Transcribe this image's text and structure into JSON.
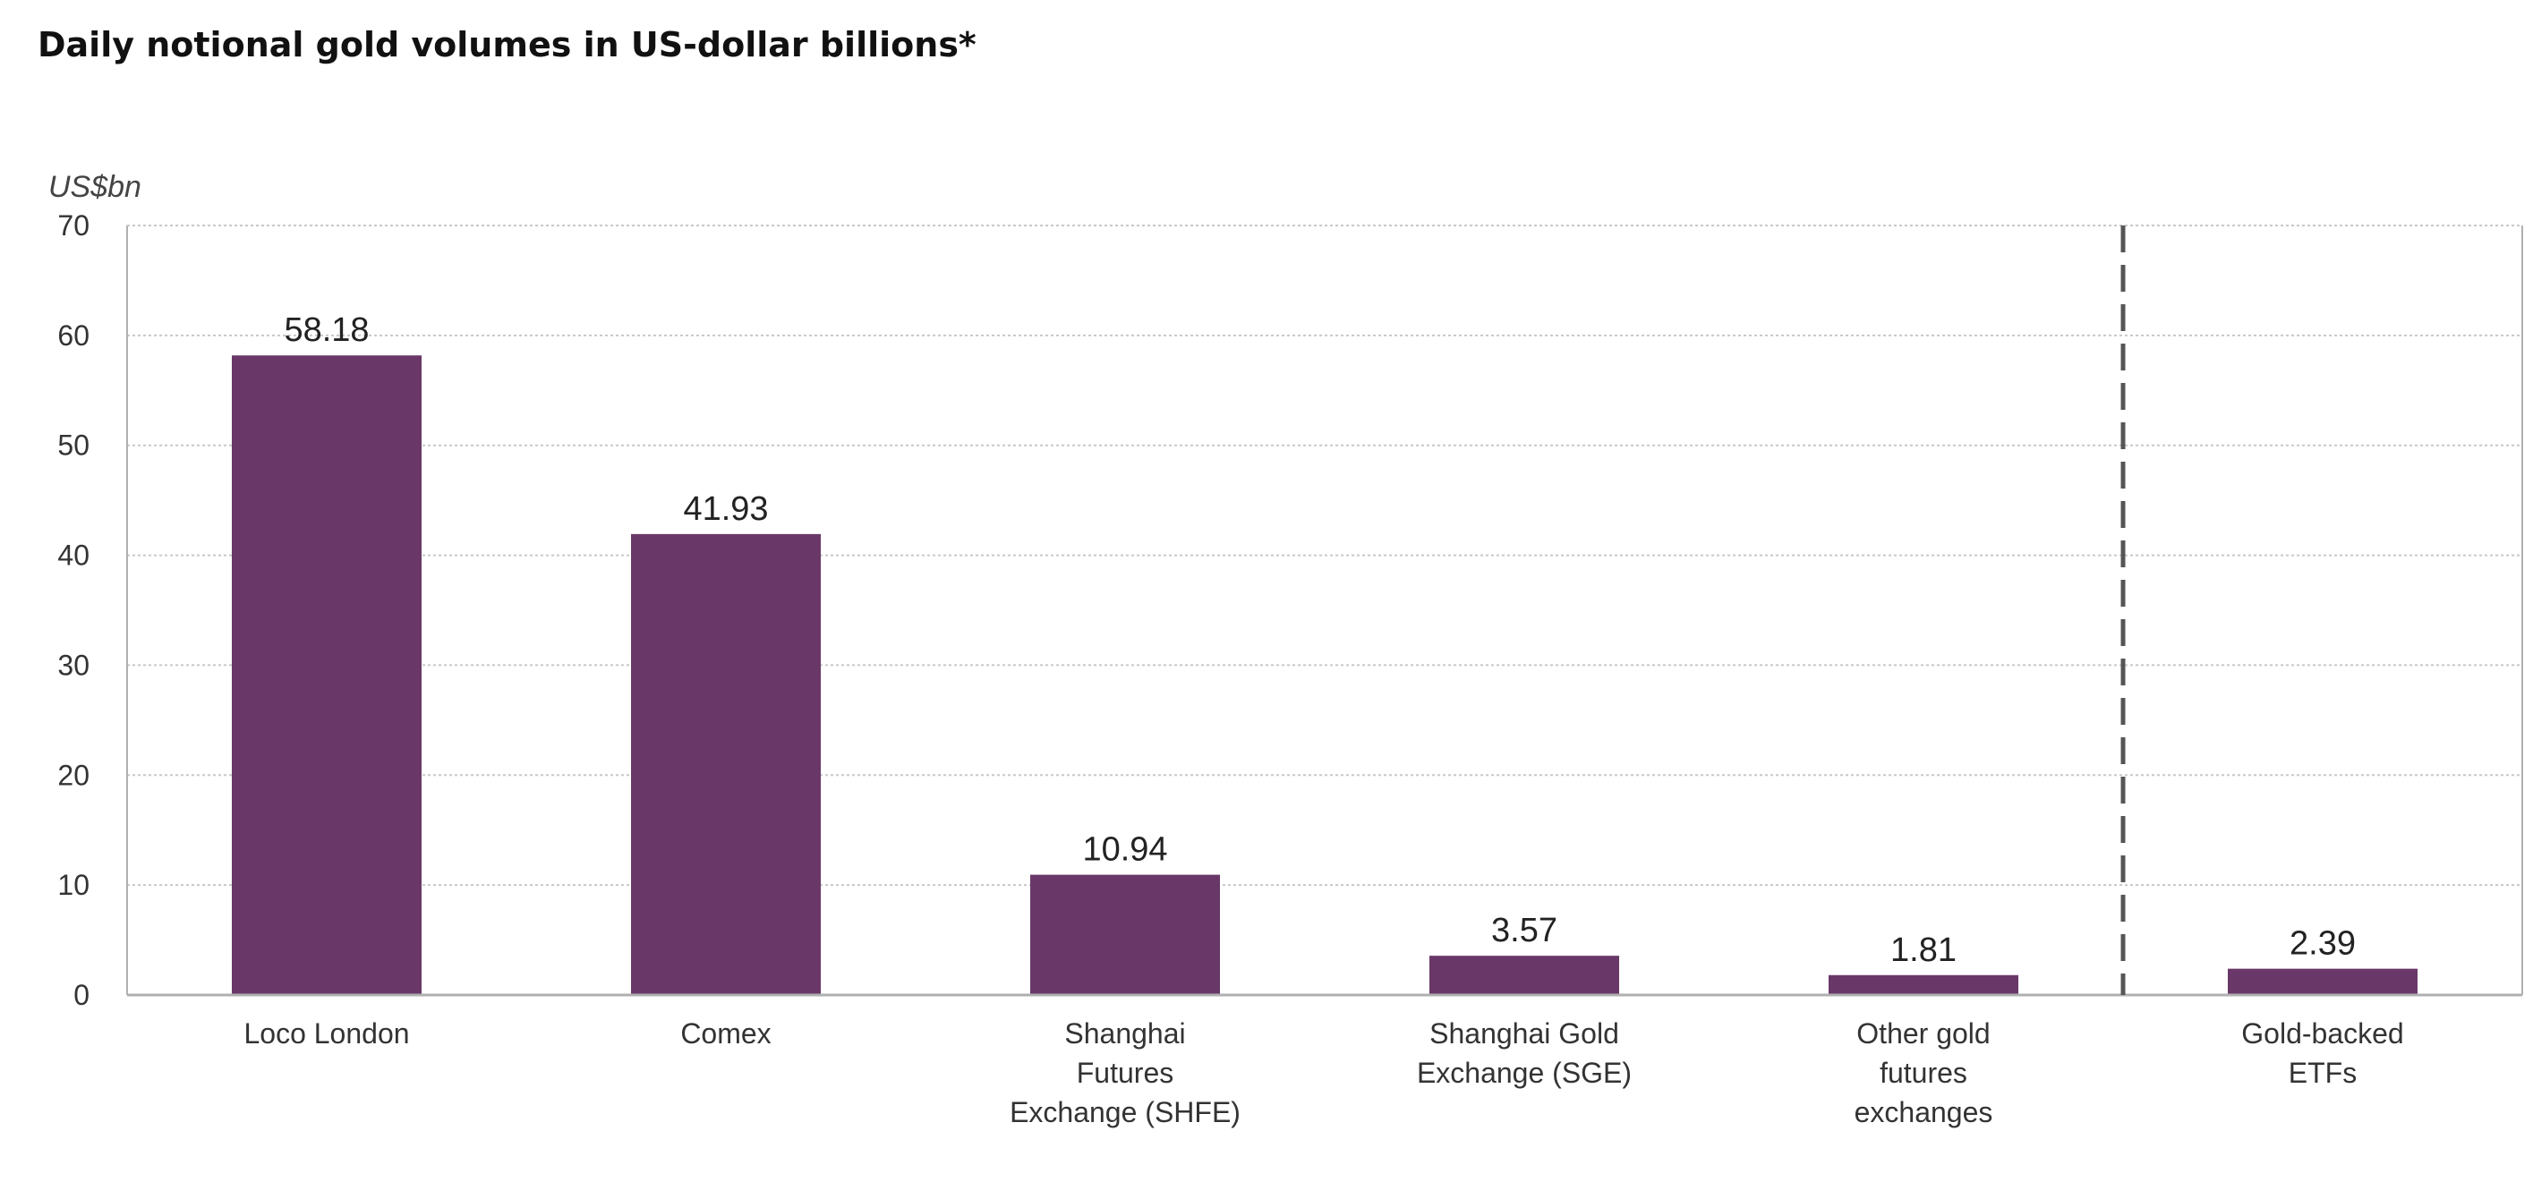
{
  "page": {
    "title": "Daily notional gold volumes in US-dollar billions*"
  },
  "chart_data": {
    "type": "bar",
    "title": "Daily notional gold volumes in US-dollar billions*",
    "ylabel": "US$bn",
    "xlabel": "",
    "ylim": [
      0,
      70
    ],
    "yticks": [
      0,
      10,
      20,
      30,
      40,
      50,
      60,
      70
    ],
    "grid": true,
    "categories": [
      [
        "Loco London"
      ],
      [
        "Comex"
      ],
      [
        "Shanghai",
        "Futures",
        "Exchange (SHFE)"
      ],
      [
        "Shanghai Gold",
        "Exchange (SGE)"
      ],
      [
        "Other gold",
        "futures",
        "exchanges"
      ],
      [
        "Gold-backed",
        "ETFs"
      ]
    ],
    "values": [
      58.18,
      41.93,
      10.94,
      3.57,
      1.81,
      2.39
    ],
    "value_labels": [
      "58.18",
      "41.93",
      "10.94",
      "3.57",
      "1.81",
      "2.39"
    ],
    "divider_after_index": 4,
    "colors": {
      "bar": "#693868",
      "grid": "#c8c8c8",
      "axis": "#b0b0b0",
      "divider": "#555555",
      "text": "#222222",
      "tick_text": "#333333"
    }
  }
}
